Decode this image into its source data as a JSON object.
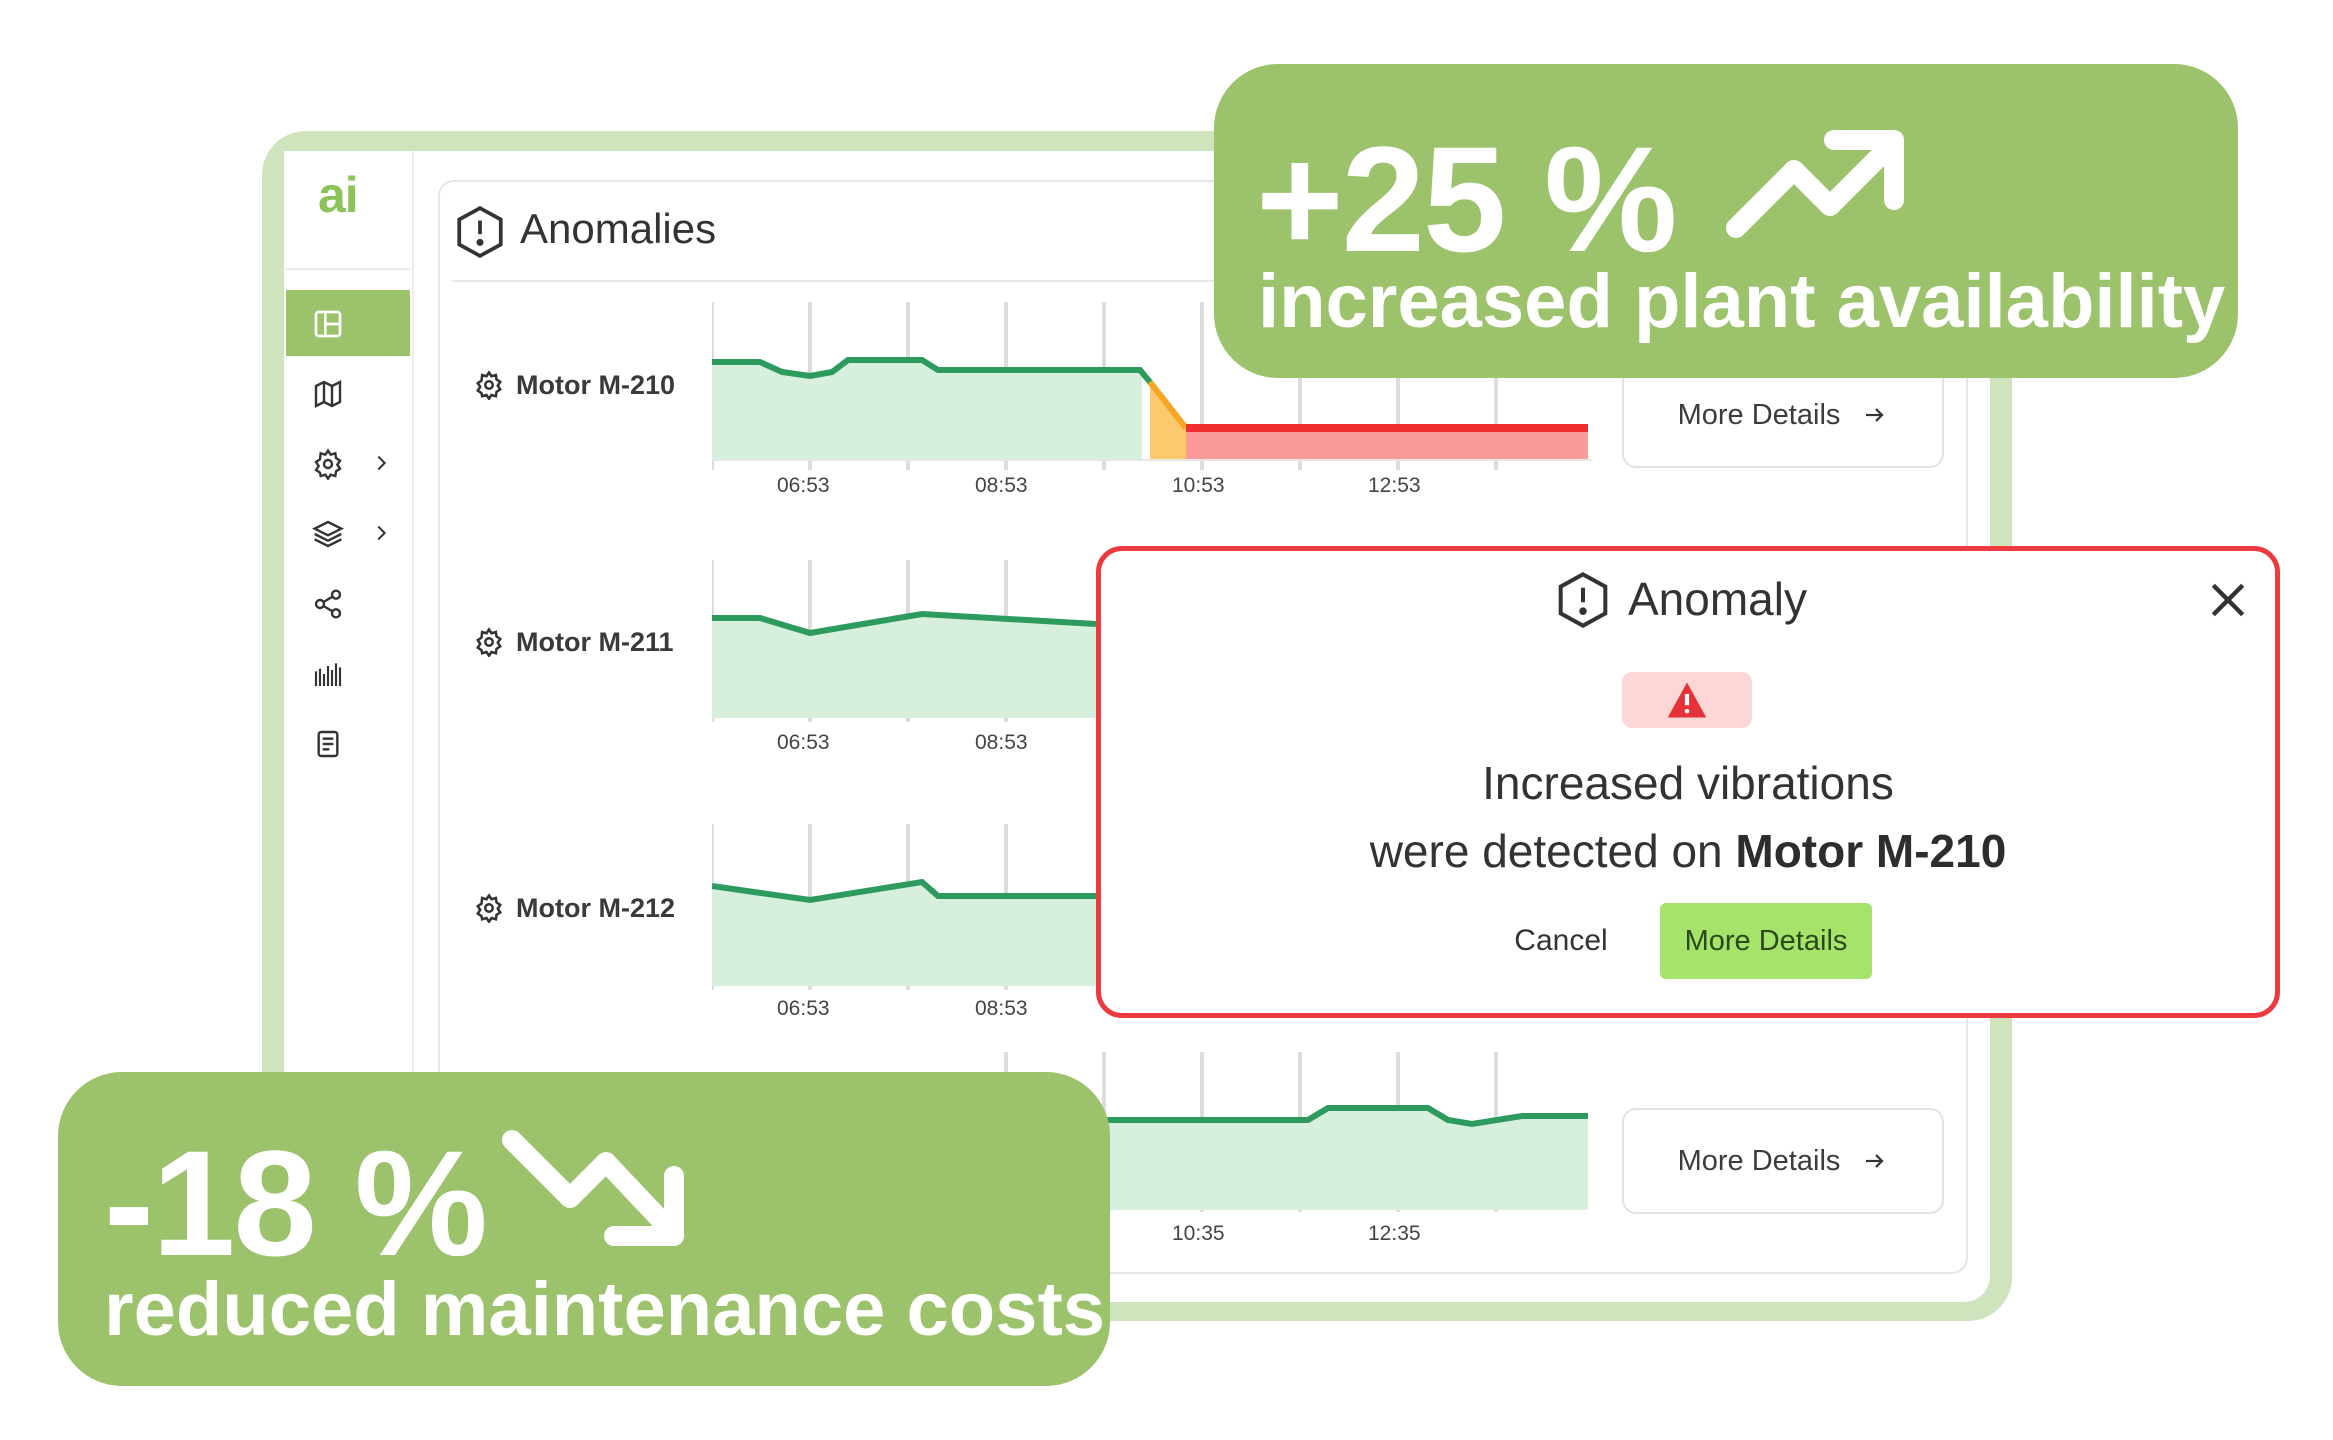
{
  "brand": {
    "logo": "ai",
    "accent": "#9cc36c"
  },
  "sidebar": {
    "items": [
      {
        "icon": "dashboard-icon",
        "active": true
      },
      {
        "icon": "map-icon"
      },
      {
        "icon": "gear-icon",
        "has_submenu": true
      },
      {
        "icon": "layers-icon",
        "has_submenu": true
      },
      {
        "icon": "share-icon"
      },
      {
        "icon": "barcode-icon"
      },
      {
        "icon": "document-icon"
      }
    ]
  },
  "panel": {
    "title": "Anomalies",
    "title_icon": "alert-hexagon-icon",
    "rows": [
      {
        "motor": "Motor M-210",
        "ticks": [
          "06:53",
          "08:53",
          "10:53",
          "12:53"
        ],
        "details": "More Details"
      },
      {
        "motor": "Motor M-211",
        "ticks": [
          "06:53",
          "08:53"
        ]
      },
      {
        "motor": "Motor M-212",
        "ticks": [
          "06:53",
          "08:53"
        ]
      },
      {
        "ticks": [
          "10:35",
          "12:35"
        ],
        "details": "More Details"
      }
    ]
  },
  "modal": {
    "title": "Anomaly",
    "message_line1": "Increased vibrations",
    "message_line2_prefix": "were detected on ",
    "message_line2_bold": "Motor M-210",
    "cancel_label": "Cancel",
    "primary_label": "More Details",
    "colors": {
      "border": "#ec3a3f",
      "badge": "#fdd6d6",
      "primary": "#a6e36a"
    }
  },
  "stats": {
    "top": {
      "value": "+25 %",
      "label": "increased plant availability",
      "icon": "trend-up-icon"
    },
    "bottom": {
      "value": "-18 %",
      "label": "reduced maintenance costs",
      "icon": "trend-down-icon"
    }
  }
}
